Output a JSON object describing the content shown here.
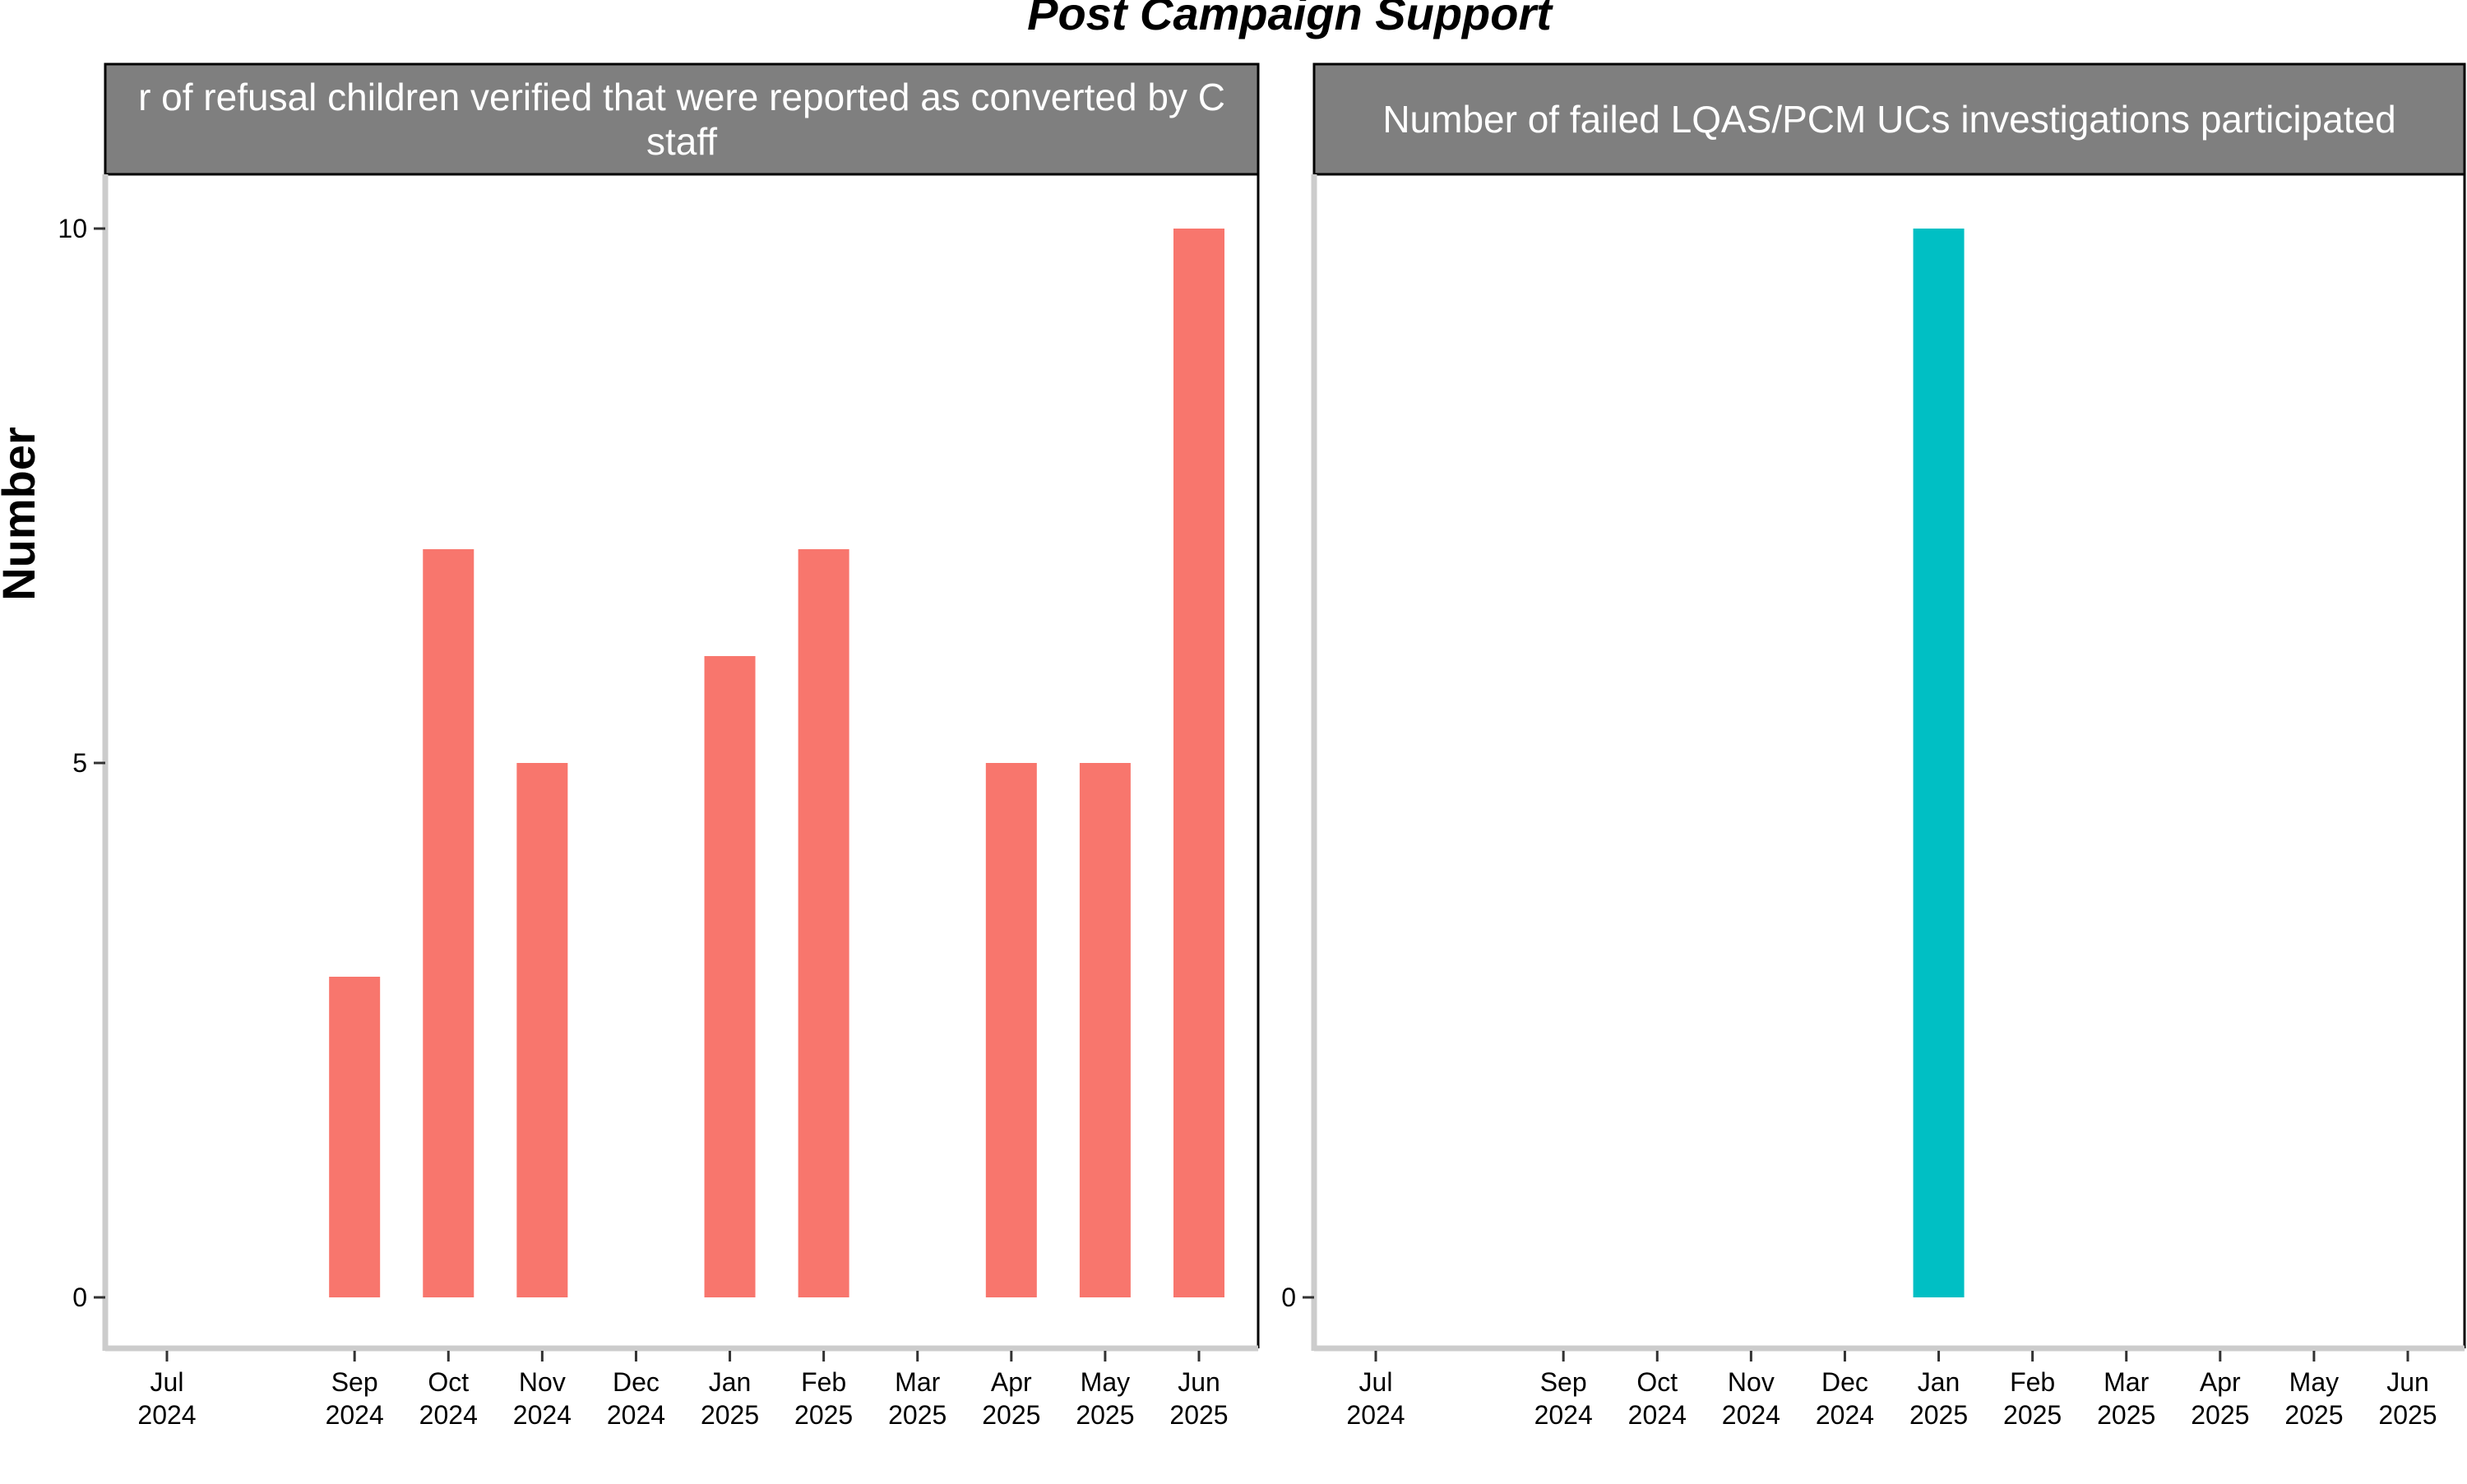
{
  "title": "Post Campaign Support",
  "ylabel": "Number",
  "chart_data": [
    {
      "type": "bar",
      "strip_title_lines": [
        "r of refusal children verified that were reported as converted by C",
        "staff"
      ],
      "color": "#F8766D",
      "categories": [
        "Jul 2024",
        "Sep 2024",
        "Oct 2024",
        "Nov 2024",
        "Dec 2024",
        "Jan 2025",
        "Feb 2025",
        "Mar 2025",
        "Apr 2025",
        "May 2025",
        "Jun 2025"
      ],
      "tick_lines": [
        [
          "Jul",
          "2024"
        ],
        [
          "Sep",
          "2024"
        ],
        [
          "Oct",
          "2024"
        ],
        [
          "Nov",
          "2024"
        ],
        [
          "Dec",
          "2024"
        ],
        [
          "Jan",
          "2025"
        ],
        [
          "Feb",
          "2025"
        ],
        [
          "Mar",
          "2025"
        ],
        [
          "Apr",
          "2025"
        ],
        [
          "May",
          "2025"
        ],
        [
          "Jun",
          "2025"
        ]
      ],
      "values": [
        0,
        3,
        7,
        5,
        0,
        6,
        7,
        0,
        5,
        5,
        10
      ],
      "y_ticks": [
        0,
        5,
        10
      ],
      "ylim": [
        0,
        10
      ]
    },
    {
      "type": "bar",
      "strip_title_lines": [
        "Number of failed LQAS/PCM UCs investigations participated"
      ],
      "color": "#00BFC4",
      "categories": [
        "Jul 2024",
        "Sep 2024",
        "Oct 2024",
        "Nov 2024",
        "Dec 2024",
        "Jan 2025",
        "Feb 2025",
        "Mar 2025",
        "Apr 2025",
        "May 2025",
        "Jun 2025"
      ],
      "tick_lines": [
        [
          "Jul",
          "2024"
        ],
        [
          "Sep",
          "2024"
        ],
        [
          "Oct",
          "2024"
        ],
        [
          "Nov",
          "2024"
        ],
        [
          "Dec",
          "2024"
        ],
        [
          "Jan",
          "2025"
        ],
        [
          "Feb",
          "2025"
        ],
        [
          "Mar",
          "2025"
        ],
        [
          "Apr",
          "2025"
        ],
        [
          "May",
          "2025"
        ],
        [
          "Jun",
          "2025"
        ]
      ],
      "values": [
        0,
        0,
        0,
        0,
        0,
        1,
        0,
        0,
        0,
        0,
        0
      ],
      "y_ticks": [
        0
      ],
      "ylim": [
        0,
        1
      ]
    }
  ]
}
